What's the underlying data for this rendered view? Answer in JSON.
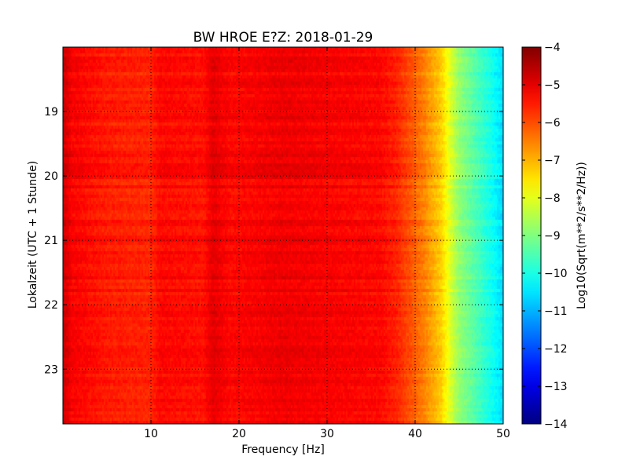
{
  "chart_data": {
    "type": "heatmap",
    "title": "BW HROE E?Z: 2018-01-29",
    "xlabel": "Frequency [Hz]",
    "ylabel": "Lokalzeit (UTC + 1 Stunde)",
    "colorbar_label": "Log10(Sqrt(m**2/s**2/Hz))",
    "colormap": "jet",
    "x_range": [
      0,
      50
    ],
    "y_range": [
      18.0,
      23.85
    ],
    "y_axis_inverted": true,
    "x_ticks": [
      10,
      20,
      30,
      40,
      50
    ],
    "x_tick_labels": [
      "10",
      "20",
      "30",
      "40",
      "50"
    ],
    "y_ticks": [
      19,
      20,
      21,
      22,
      23
    ],
    "y_tick_labels": [
      "19",
      "20",
      "21",
      "22",
      "23"
    ],
    "clim": [
      -14,
      -4
    ],
    "colorbar_ticks": [
      -4,
      -5,
      -6,
      -7,
      -8,
      -9,
      -10,
      -11,
      -12,
      -13,
      -14
    ],
    "colorbar_tick_labels": [
      "−4",
      "−5",
      "−6",
      "−7",
      "−8",
      "−9",
      "−10",
      "−11",
      "−12",
      "−13",
      "−14"
    ],
    "grid": true,
    "spectral_profile": {
      "frequency_hz": [
        0,
        1,
        5,
        10,
        11,
        16,
        17,
        19,
        25,
        30,
        36,
        38,
        41,
        43,
        44,
        45,
        47,
        49,
        50
      ],
      "log10_amplitude": [
        -4.7,
        -5.2,
        -5.5,
        -5.6,
        -5.3,
        -5.4,
        -5.0,
        -5.3,
        -5.1,
        -5.2,
        -5.3,
        -5.6,
        -6.5,
        -7.3,
        -8.1,
        -8.8,
        -9.5,
        -10.2,
        -10.6
      ]
    }
  }
}
